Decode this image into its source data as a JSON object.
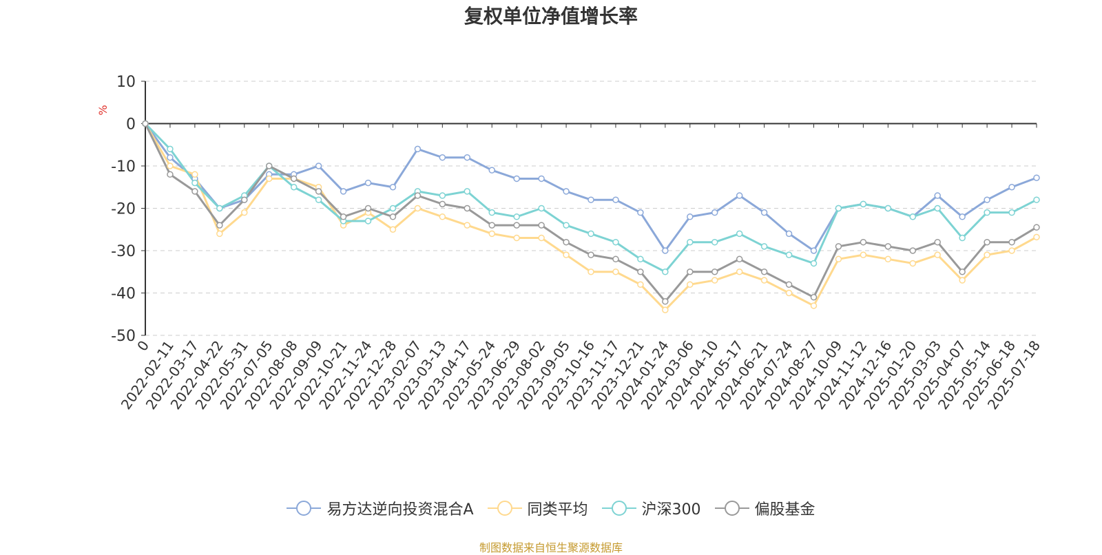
{
  "chart_data": {
    "type": "line",
    "title": "复权单位净值增长率",
    "ylabel": "%",
    "ylim": [
      -50,
      10
    ],
    "yticks": [
      10,
      0,
      -10,
      -20,
      -30,
      -40,
      -50
    ],
    "grid": true,
    "legend_position": "bottom",
    "x_tick_labels": [
      "0",
      "2022-02-11",
      "2022-03-17",
      "2022-04-22",
      "2022-05-31",
      "2022-07-05",
      "2022-08-08",
      "2022-09-09",
      "2022-10-21",
      "2022-11-24",
      "2022-12-28",
      "2023-02-07",
      "2023-03-13",
      "2023-04-17",
      "2023-05-24",
      "2023-06-29",
      "2023-08-02",
      "2023-09-05",
      "2023-10-16",
      "2023-11-17",
      "2023-12-21",
      "2024-01-24",
      "2024-03-06",
      "2024-04-10",
      "2024-05-17",
      "2024-06-21",
      "2024-07-24",
      "2024-08-27",
      "2024-10-09",
      "2024-11-12",
      "2024-12-16",
      "2025-01-20",
      "2025-03-03",
      "2025-04-07",
      "2025-05-14",
      "2025-06-18",
      "2025-07-18"
    ],
    "series": [
      {
        "name": "易方达逆向投资混合A",
        "color": "#8ba8d9",
        "values": [
          0,
          -8,
          -13,
          -20,
          -18,
          -12,
          -12,
          -10,
          -16,
          -14,
          -15,
          -6,
          -8,
          -8,
          -11,
          -13,
          -13,
          -16,
          -18,
          -18,
          -21,
          -30,
          -22,
          -21,
          -17,
          -21,
          -26,
          -30,
          -20,
          -19,
          -20,
          -22,
          -17,
          -22,
          -18,
          -15,
          -12.8
        ]
      },
      {
        "name": "同类平均",
        "color": "#ffd98e",
        "values": [
          0,
          -10,
          -12,
          -26,
          -21,
          -13,
          -13,
          -15,
          -24,
          -21,
          -25,
          -20,
          -22,
          -24,
          -26,
          -27,
          -27,
          -31,
          -35,
          -35,
          -38,
          -44,
          -38,
          -37,
          -35,
          -37,
          -40,
          -43,
          -32,
          -31,
          -32,
          -33,
          -31,
          -37,
          -31,
          -30,
          -26.8
        ]
      },
      {
        "name": "沪深300",
        "color": "#7dd3d3",
        "values": [
          0,
          -6,
          -14,
          -20,
          -17,
          -10,
          -15,
          -18,
          -23,
          -23,
          -20,
          -16,
          -17,
          -16,
          -21,
          -22,
          -20,
          -24,
          -26,
          -28,
          -32,
          -35,
          -28,
          -28,
          -26,
          -29,
          -31,
          -33,
          -20,
          -19,
          -20,
          -22,
          -20,
          -27,
          -21,
          -21,
          -18
        ]
      },
      {
        "name": "偏股基金",
        "color": "#999999",
        "values": [
          0,
          -12,
          -16,
          -24,
          -18,
          -10,
          -13,
          -16,
          -22,
          -20,
          -22,
          -17,
          -19,
          -20,
          -24,
          -24,
          -24,
          -28,
          -31,
          -32,
          -35,
          -42,
          -35,
          -35,
          -32,
          -35,
          -38,
          -41,
          -29,
          -28,
          -29,
          -30,
          -28,
          -35,
          -28,
          -28,
          -24.5
        ]
      }
    ]
  },
  "legend": {
    "items": [
      {
        "label": "易方达逆向投资混合A",
        "color": "#8ba8d9"
      },
      {
        "label": "同类平均",
        "color": "#ffd98e"
      },
      {
        "label": "沪深300",
        "color": "#7dd3d3"
      },
      {
        "label": "偏股基金",
        "color": "#999999"
      }
    ]
  },
  "footer": "制图数据来自恒生聚源数据库"
}
